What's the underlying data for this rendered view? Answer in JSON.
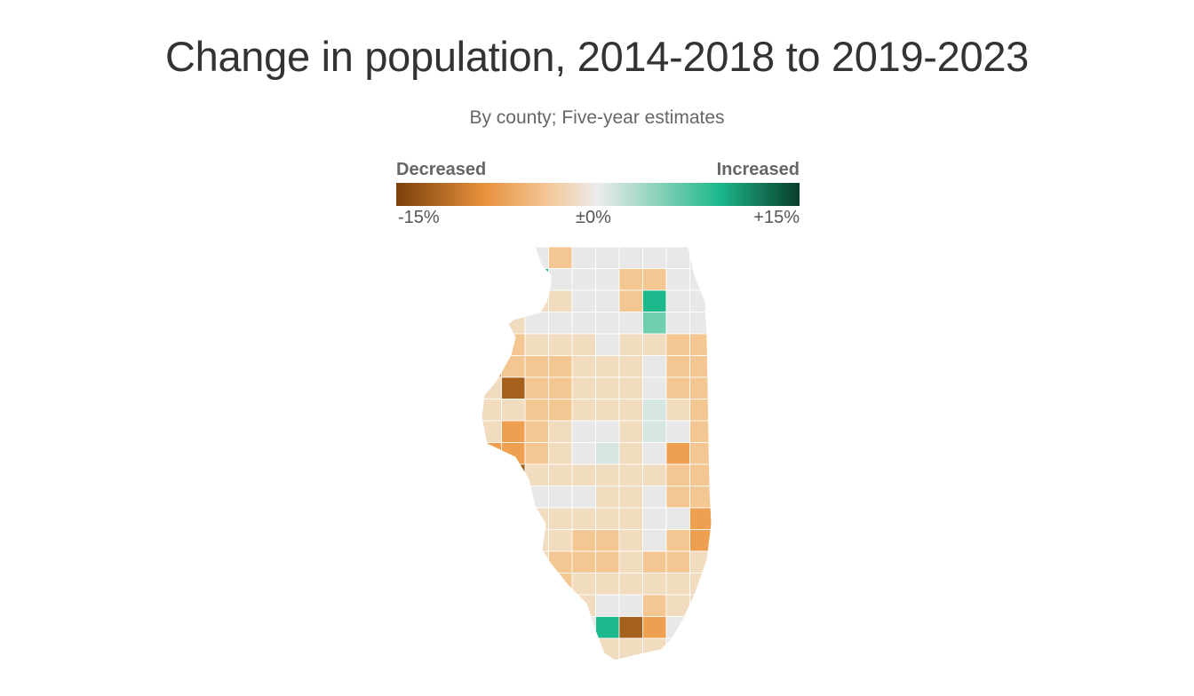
{
  "title": "Change in population, 2014-2018 to 2019-2023",
  "subtitle": "By county; Five-year estimates",
  "legend": {
    "low_label": "Decreased",
    "high_label": "Increased",
    "ticks": [
      "-15%",
      "±0%",
      "+15%"
    ],
    "colors": [
      "#7a3f0a",
      "#e8923d",
      "#f3c89a",
      "#ececec",
      "#8fd3bd",
      "#1db88c",
      "#0a3d2a"
    ]
  },
  "map": {
    "region": "Illinois counties",
    "color_stops": {
      "strong_decrease": "#a5601c",
      "decrease": "#ef9f50",
      "mild_decrease": "#f3c692",
      "slight_decrease": "#f1dcc0",
      "no_change": "#e8e8e8",
      "slight_increase": "#d6e6e3",
      "increase": "#6fcfb0",
      "strong_increase": "#1db88c",
      "extreme_decrease": "#6b3a0e"
    }
  }
}
